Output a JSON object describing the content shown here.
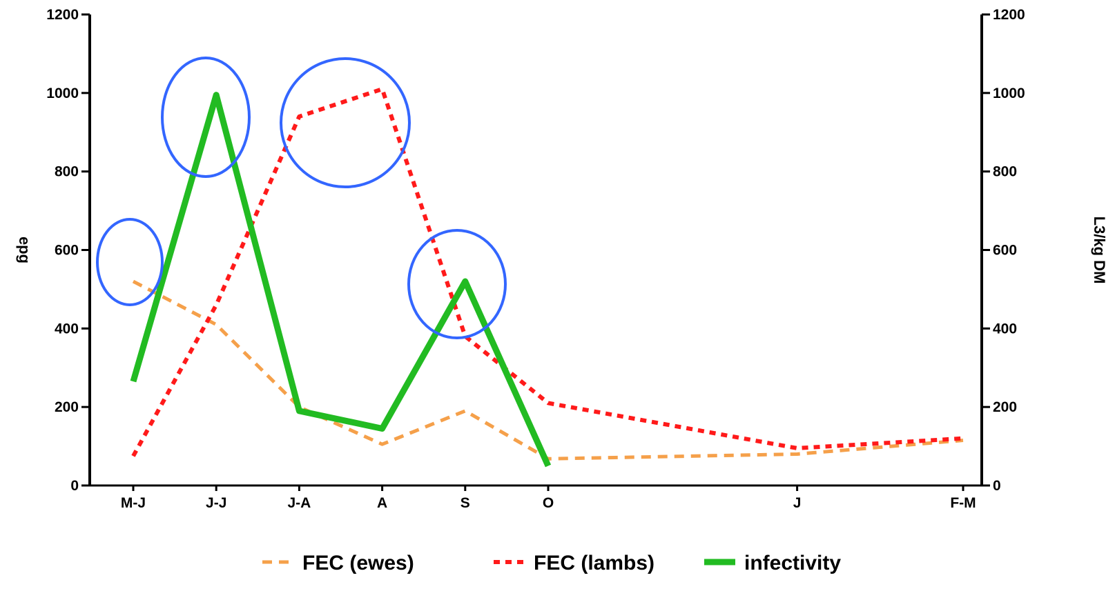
{
  "chart_data": {
    "type": "line",
    "categories": [
      "M-J",
      "J-J",
      "J-A",
      "A",
      "S",
      "O",
      "J",
      "F-M"
    ],
    "x_positions": [
      0,
      1,
      2,
      3,
      4,
      5,
      8,
      10
    ],
    "ylabel_left": "epg",
    "ylabel_right": "L3/kg DM",
    "ylim": [
      0,
      1200
    ],
    "yticks": [
      0,
      200,
      400,
      600,
      800,
      1000,
      1200
    ],
    "series": [
      {
        "name": "FEC (ewes)",
        "axis": "left",
        "style": "dashed",
        "color": "#f5a04a",
        "values": [
          520,
          410,
          200,
          105,
          190,
          68,
          80,
          115
        ]
      },
      {
        "name": "FEC (lambs)",
        "axis": "left",
        "style": "dotted",
        "color": "#ff1a1a",
        "values": [
          75,
          460,
          940,
          1010,
          380,
          210,
          95,
          120
        ]
      },
      {
        "name": "infectivity",
        "axis": "right",
        "style": "solid",
        "color": "#22bb22",
        "values": [
          265,
          995,
          190,
          145,
          520,
          50,
          null,
          null
        ]
      }
    ],
    "highlights_color": "#3366ff",
    "grid": false,
    "legend_position": "bottom"
  }
}
